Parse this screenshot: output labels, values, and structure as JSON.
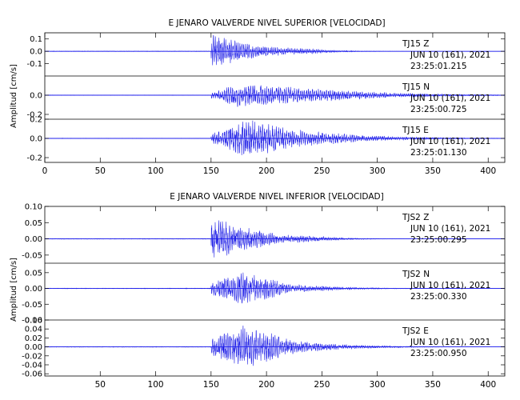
{
  "chart_data": [
    {
      "type": "line",
      "title": "E JENARO VALVERDE NIVEL SUPERIOR [VELOCIDAD]",
      "ylabel": "Amplitud [cm/s]",
      "xlim": [
        0,
        415
      ],
      "xticks": [
        "0",
        "50",
        "100",
        "150",
        "200",
        "250",
        "300",
        "350",
        "400"
      ],
      "color": "#1f1fe6",
      "channels": [
        {
          "station": "TJ15",
          "component": "Z",
          "date": "JUN 10 (161), 2021",
          "time": "23:25:01.215",
          "ylim": [
            -0.2,
            0.15
          ],
          "yticks": [
            "0.1",
            "0.0",
            "-0.1"
          ],
          "onset": 150,
          "peak_time": 152,
          "peak_amp": 0.15,
          "decay": 22,
          "period": 1.6,
          "envelope": [
            {
              "t": 150,
              "a": 0.14
            },
            {
              "t": 175,
              "a": 0.08
            },
            {
              "t": 200,
              "a": 0.04
            },
            {
              "t": 250,
              "a": 0.015
            }
          ]
        },
        {
          "station": "TJ15",
          "component": "N",
          "date": "JUN 10 (161), 2021",
          "time": "23:25:00.725",
          "ylim": [
            -0.25,
            0.2
          ],
          "yticks": [
            "0.0",
            "-0.2"
          ],
          "onset": 150,
          "peak_time": 176,
          "peak_amp": 0.13,
          "decay": 55,
          "period": 1.8,
          "envelope": [
            {
              "t": 150,
              "a": 0.04
            },
            {
              "t": 176,
              "a": 0.13
            },
            {
              "t": 230,
              "a": 0.08
            },
            {
              "t": 290,
              "a": 0.04
            }
          ]
        },
        {
          "station": "TJ15",
          "component": "E",
          "date": "JUN 10 (161), 2021",
          "time": "23:25:01.130",
          "ylim": [
            -0.25,
            0.2
          ],
          "yticks": [
            "0.2",
            "0.0",
            "-0.2"
          ],
          "onset": 150,
          "peak_time": 182,
          "peak_amp": 0.2,
          "decay": 50,
          "period": 1.8,
          "envelope": [
            {
              "t": 150,
              "a": 0.05
            },
            {
              "t": 182,
              "a": 0.2
            },
            {
              "t": 230,
              "a": 0.09
            },
            {
              "t": 280,
              "a": 0.04
            }
          ]
        }
      ]
    },
    {
      "type": "line",
      "title": "E JENARO VALVERDE NIVEL INFERIOR [VELOCIDAD]",
      "ylabel": "Amplitud [cm/s]",
      "xlim": [
        0,
        415
      ],
      "xticks": [
        "50",
        "100",
        "150",
        "200",
        "250",
        "300",
        "350",
        "400"
      ],
      "color": "#1f1fe6",
      "channels": [
        {
          "station": "TJS2",
          "component": "Z",
          "date": "JUN 10 (161), 2021",
          "time": "23:25:00.295",
          "ylim": [
            -0.075,
            0.1
          ],
          "yticks": [
            "0.10",
            "0.05",
            "0.00",
            "-0.05"
          ],
          "onset": 150,
          "peak_time": 152,
          "peak_amp": 0.07,
          "decay": 25,
          "period": 1.6,
          "envelope": [
            {
              "t": 150,
              "a": 0.07
            },
            {
              "t": 175,
              "a": 0.04
            },
            {
              "t": 210,
              "a": 0.015
            },
            {
              "t": 260,
              "a": 0.005
            }
          ]
        },
        {
          "station": "TJS2",
          "component": "N",
          "date": "JUN 10 (161), 2021",
          "time": "23:25:00.330",
          "ylim": [
            -0.1,
            0.08
          ],
          "yticks": [
            "0.05",
            "0.00",
            "-0.05",
            "-0.10"
          ],
          "onset": 150,
          "peak_time": 178,
          "peak_amp": 0.055,
          "decay": 35,
          "period": 1.7,
          "envelope": [
            {
              "t": 150,
              "a": 0.02
            },
            {
              "t": 178,
              "a": 0.055
            },
            {
              "t": 220,
              "a": 0.015
            },
            {
              "t": 260,
              "a": 0.006
            }
          ]
        },
        {
          "station": "TJS2",
          "component": "E",
          "date": "JUN 10 (161), 2021",
          "time": "23:25:00.950",
          "ylim": [
            -0.065,
            0.06
          ],
          "yticks": [
            "0.06",
            "0.04",
            "0.02",
            "0.00",
            "-0.02",
            "-0.04",
            "-0.06"
          ],
          "onset": 150,
          "peak_time": 180,
          "peak_amp": 0.05,
          "decay": 40,
          "period": 1.7,
          "envelope": [
            {
              "t": 150,
              "a": 0.02
            },
            {
              "t": 180,
              "a": 0.05
            },
            {
              "t": 225,
              "a": 0.015
            },
            {
              "t": 260,
              "a": 0.007
            }
          ]
        }
      ]
    }
  ]
}
